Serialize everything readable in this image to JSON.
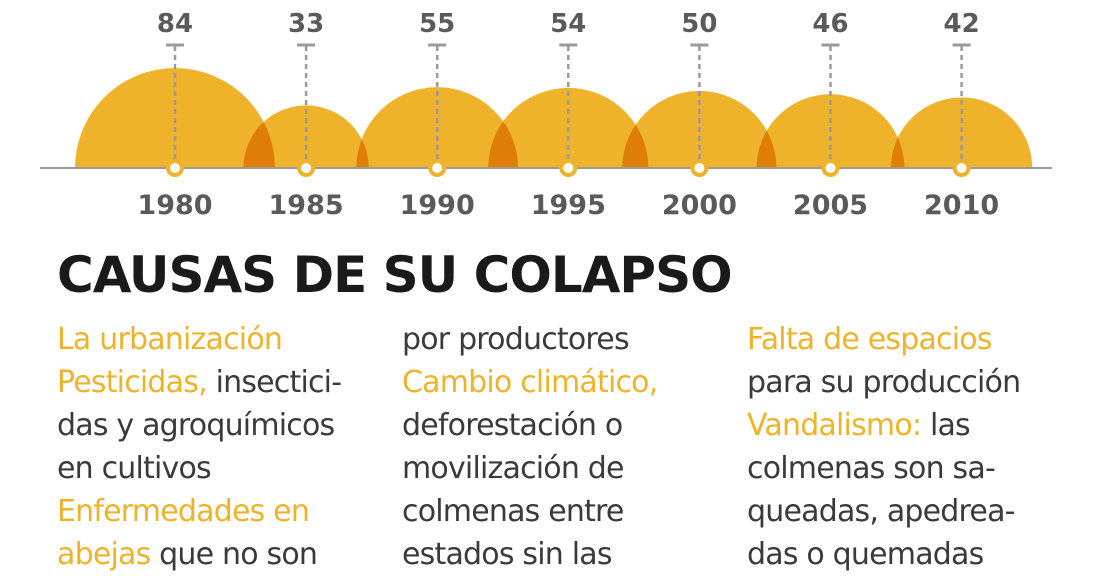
{
  "chart_data": {
    "type": "semicircle",
    "categories": [
      "1980",
      "1985",
      "1990",
      "1995",
      "2000",
      "2005",
      "2010"
    ],
    "values": [
      84,
      33,
      55,
      54,
      50,
      46,
      42
    ],
    "color": "#eeb32b"
  },
  "section": {
    "title": "CAUSAS DE SU COLAPSO",
    "columns": [
      [
        [
          {
            "h": "La urbanización"
          }
        ],
        [
          {
            "h": "Pesticidas,"
          },
          {
            "t": " insectici-"
          }
        ],
        [
          {
            "t": "das y agroquímicos"
          }
        ],
        [
          {
            "t": "en cultivos"
          }
        ],
        [
          {
            "h": "Enfermedades en"
          }
        ],
        [
          {
            "h": "abejas"
          },
          {
            "t": " que no son"
          }
        ]
      ],
      [
        [
          {
            "t": "por productores"
          }
        ],
        [
          {
            "h": "Cambio climático,"
          }
        ],
        [
          {
            "t": "deforestación o"
          }
        ],
        [
          {
            "t": "movilización de"
          }
        ],
        [
          {
            "t": "colmenas entre"
          }
        ],
        [
          {
            "t": "estados sin las"
          }
        ]
      ],
      [
        [
          {
            "h": "Falta de espacios"
          }
        ],
        [
          {
            "t": "para su producción"
          }
        ],
        [
          {
            "h": "Vandalismo:"
          },
          {
            "t": " las"
          }
        ],
        [
          {
            "t": "colmenas son sa-"
          }
        ],
        [
          {
            "t": "queadas, apedrea-"
          }
        ],
        [
          {
            "t": "das o quemadas"
          }
        ]
      ]
    ]
  }
}
